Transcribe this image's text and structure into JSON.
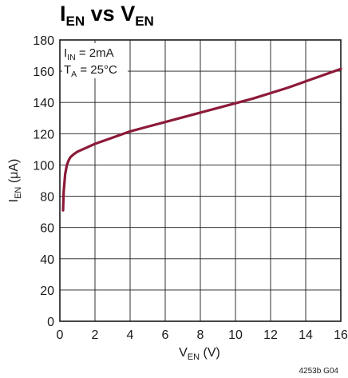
{
  "chart_data": {
    "type": "line",
    "title": {
      "main": "I",
      "main_sub": "EN",
      "mid": " vs ",
      "end": "V",
      "end_sub": "EN"
    },
    "xlabel": {
      "main": "V",
      "sub": "EN",
      "rest": " (V)"
    },
    "ylabel": {
      "main": "I",
      "sub": "EN",
      "rest": " (μA)"
    },
    "xlim": [
      0,
      16
    ],
    "ylim": [
      0,
      180
    ],
    "xticks": [
      0,
      2,
      4,
      6,
      8,
      10,
      12,
      14,
      16
    ],
    "yticks": [
      0,
      20,
      40,
      60,
      80,
      100,
      120,
      140,
      160,
      180
    ],
    "grid": true,
    "annotations": [
      {
        "main": "I",
        "sub": "IN",
        "rest": " = 2mA"
      },
      {
        "main": "T",
        "sub": "A",
        "rest": " = 25°C"
      }
    ],
    "figure_id": "4253b G04",
    "series": [
      {
        "color": "#8c1a38",
        "x": [
          0.18,
          0.22,
          0.3,
          0.4,
          0.5,
          0.6,
          0.8,
          1.0,
          1.5,
          2.0,
          2.5,
          3.0,
          4.0,
          5.0,
          6.0,
          7.0,
          8.0,
          9.0,
          10.0,
          11.0,
          12.0,
          13.0,
          14.0,
          15.0,
          16.0
        ],
        "y": [
          71,
          83,
          94,
          100,
          103,
          105,
          107,
          108.5,
          111,
          113.5,
          115.5,
          117.5,
          121.5,
          124.5,
          127.5,
          130.5,
          133.5,
          136.5,
          139.5,
          142.5,
          146,
          149.5,
          153.5,
          157.5,
          161.5
        ]
      }
    ]
  }
}
